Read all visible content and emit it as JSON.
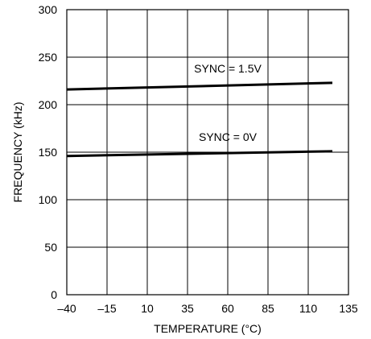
{
  "chart_data": {
    "type": "line",
    "xlabel": "TEMPERATURE (°C)",
    "ylabel": "FREQUENCY (kHz)",
    "xlim": [
      -40,
      135
    ],
    "ylim": [
      0,
      300
    ],
    "x_ticks": [
      -40,
      -15,
      10,
      35,
      60,
      85,
      110,
      135
    ],
    "x_tick_labels": [
      "–40",
      "–15",
      "10",
      "35",
      "60",
      "85",
      "110",
      "135"
    ],
    "y_ticks": [
      0,
      50,
      100,
      150,
      200,
      250,
      300
    ],
    "y_tick_labels": [
      "0",
      "50",
      "100",
      "150",
      "200",
      "250",
      "300"
    ],
    "grid": true,
    "series": [
      {
        "name": "SYNC = 1.5V",
        "x": [
          -40,
          125
        ],
        "y": [
          216,
          223
        ]
      },
      {
        "name": "SYNC = 0V",
        "x": [
          -40,
          125
        ],
        "y": [
          146,
          151
        ]
      }
    ],
    "annotations": [
      {
        "text": "SYNC = 1.5V",
        "x": 60,
        "y": 234
      },
      {
        "text": "SYNC = 0V",
        "x": 60,
        "y": 162
      }
    ]
  }
}
